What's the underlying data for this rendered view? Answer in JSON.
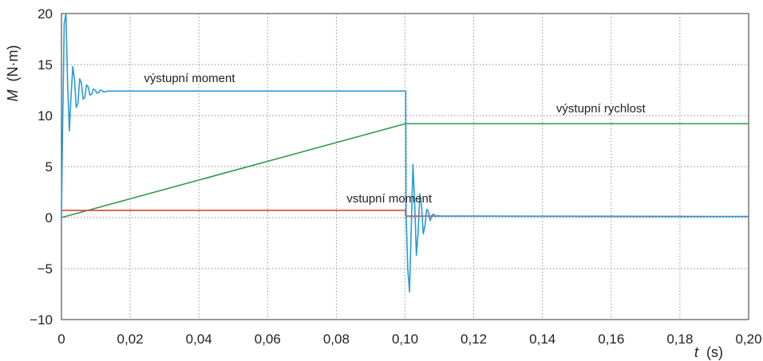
{
  "chart_data": {
    "type": "line",
    "xlabel_var": "t",
    "xlabel_unit": "(s)",
    "ylabel_var": "M",
    "ylabel_unit": "(N·m)",
    "xlim": [
      0,
      0.2
    ],
    "ylim": [
      -10,
      20
    ],
    "xticks": [
      0,
      0.02,
      0.04,
      0.06,
      0.08,
      0.1,
      0.12,
      0.14,
      0.16,
      0.18,
      0.2
    ],
    "xtick_labels": [
      "0",
      "0,02",
      "0,04",
      "0,06",
      "0,08",
      "0,10",
      "0,12",
      "0,14",
      "0,16",
      "0,18",
      "0,20"
    ],
    "yticks": [
      -10,
      -5,
      0,
      5,
      10,
      15,
      20
    ],
    "ytick_labels": [
      "−10",
      "−5",
      "0",
      "5",
      "10",
      "15",
      "20"
    ],
    "grid": true,
    "series": [
      {
        "name": "výstupní moment",
        "color": "#2a9ad6",
        "x": [
          0,
          0.0003,
          0.0008,
          0.0013,
          0.0018,
          0.0023,
          0.0028,
          0.0033,
          0.0038,
          0.0043,
          0.0048,
          0.0053,
          0.0058,
          0.0063,
          0.0068,
          0.0073,
          0.0078,
          0.0083,
          0.0088,
          0.0093,
          0.0098,
          0.0103,
          0.0108,
          0.0113,
          0.0118,
          0.0123,
          0.0128,
          0.0133,
          0.014,
          0.1002,
          0.1003,
          0.1008,
          0.1013,
          0.1018,
          0.1023,
          0.1028,
          0.1033,
          0.1038,
          0.1043,
          0.1048,
          0.1053,
          0.1058,
          0.1063,
          0.1068,
          0.1073,
          0.1078,
          0.1083,
          0.1088,
          0.1093,
          0.11,
          0.2
        ],
        "values": [
          0,
          8,
          19,
          20,
          13,
          8.5,
          12,
          14.8,
          13.5,
          10.8,
          11.2,
          13.6,
          13.2,
          11.6,
          11.8,
          13,
          12.8,
          12.0,
          12.1,
          12.6,
          12.5,
          12.2,
          12.25,
          12.5,
          12.45,
          12.3,
          12.35,
          12.4,
          12.4,
          12.4,
          0.5,
          -5,
          -7.3,
          -1,
          5.2,
          1.5,
          -3.7,
          -1.5,
          2.3,
          1.2,
          -1.6,
          -0.8,
          0.8,
          0.6,
          -0.3,
          0.2,
          0.35,
          0.1,
          0.2,
          0.15,
          0.1
        ]
      },
      {
        "name": "výstupní rychlost",
        "color": "#2f9a4a",
        "x": [
          0,
          0.1001,
          0.2
        ],
        "values": [
          0,
          9.2,
          9.2
        ]
      },
      {
        "name": "vstupní moment",
        "color": "#d2493a",
        "x": [
          0,
          0.1001,
          0.1002,
          0.2
        ],
        "values": [
          0.7,
          0.7,
          0.15,
          0.1
        ]
      }
    ],
    "annotations": [
      {
        "text": "výstupní moment",
        "x": 0.024,
        "y": 13.3
      },
      {
        "text": "výstupní rychlost",
        "x": 0.144,
        "y": 10.3
      },
      {
        "text": "vstupní moment",
        "x": 0.083,
        "y": 1.5
      }
    ]
  }
}
